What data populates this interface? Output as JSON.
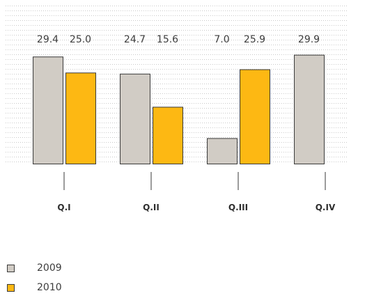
{
  "chart_data": {
    "type": "bar",
    "categories": [
      "Q.I",
      "Q.II",
      "Q.III",
      "Q.IV"
    ],
    "series": [
      {
        "name": "2009",
        "values": [
          29.4,
          24.7,
          7.0,
          29.9
        ],
        "labels": [
          "29.4",
          "24.7",
          "7.0",
          "29.9"
        ],
        "color": "#d1ccc5"
      },
      {
        "name": "2010",
        "values": [
          25.0,
          15.6,
          25.9,
          null
        ],
        "labels": [
          "25.0",
          "15.6",
          "25.9",
          null
        ],
        "color": "#fdb813"
      }
    ],
    "ylim": [
      0,
      30
    ],
    "grid": true,
    "legend_position": "bottom-left"
  }
}
